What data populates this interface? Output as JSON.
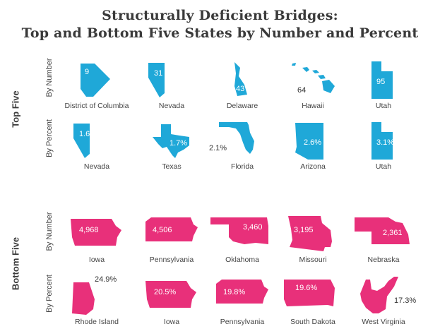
{
  "title_line1": "Structurally Deficient Bridges:",
  "title_line2": "Top and Bottom Five States by Number and Percent",
  "colors": {
    "top": "#1fa8d8",
    "bottom": "#e8307a"
  },
  "chart_data": {
    "type": "table",
    "title": "Structurally Deficient Bridges: Top and Bottom Five States by Number and Percent",
    "groups": [
      {
        "label": "Top Five",
        "rows": [
          {
            "label": "By Number",
            "items": [
              {
                "state": "District of Columbia",
                "value": 9,
                "display": "9",
                "shape": "dc"
              },
              {
                "state": "Nevada",
                "value": 31,
                "display": "31",
                "shape": "nevada"
              },
              {
                "state": "Delaware",
                "value": 43,
                "display": "43",
                "shape": "delaware"
              },
              {
                "state": "Hawaii",
                "value": 64,
                "display": "64",
                "shape": "hawaii"
              },
              {
                "state": "Utah",
                "value": 95,
                "display": "95",
                "shape": "utah"
              }
            ]
          },
          {
            "label": "By Percent",
            "items": [
              {
                "state": "Nevada",
                "value": 1.6,
                "display": "1.6%",
                "shape": "nevada"
              },
              {
                "state": "Texas",
                "value": 1.7,
                "display": "1.7%",
                "shape": "texas"
              },
              {
                "state": "Florida",
                "value": 2.1,
                "display": "2.1%",
                "shape": "florida"
              },
              {
                "state": "Arizona",
                "value": 2.6,
                "display": "2.6%",
                "shape": "arizona"
              },
              {
                "state": "Utah",
                "value": 3.1,
                "display": "3.1%",
                "shape": "utah"
              }
            ]
          }
        ]
      },
      {
        "label": "Bottom Five",
        "rows": [
          {
            "label": "By Number",
            "items": [
              {
                "state": "Iowa",
                "value": 4968,
                "display": "4,968",
                "shape": "iowa"
              },
              {
                "state": "Pennsylvania",
                "value": 4506,
                "display": "4,506",
                "shape": "pennsylvania"
              },
              {
                "state": "Oklahoma",
                "value": 3460,
                "display": "3,460",
                "shape": "oklahoma"
              },
              {
                "state": "Missouri",
                "value": 3195,
                "display": "3,195",
                "shape": "missouri"
              },
              {
                "state": "Nebraska",
                "value": 2361,
                "display": "2,361",
                "shape": "nebraska"
              }
            ]
          },
          {
            "label": "By Percent",
            "items": [
              {
                "state": "Rhode Island",
                "value": 24.9,
                "display": "24.9%",
                "shape": "rhodeisland"
              },
              {
                "state": "Iowa",
                "value": 20.5,
                "display": "20.5%",
                "shape": "iowa"
              },
              {
                "state": "Pennsylvania",
                "value": 19.8,
                "display": "19.8%",
                "shape": "pennsylvania"
              },
              {
                "state": "South Dakota",
                "value": 19.6,
                "display": "19.6%",
                "shape": "southdakota"
              },
              {
                "state": "West Virginia",
                "value": 17.3,
                "display": "17.3%",
                "shape": "westvirginia"
              }
            ]
          }
        ]
      }
    ]
  }
}
